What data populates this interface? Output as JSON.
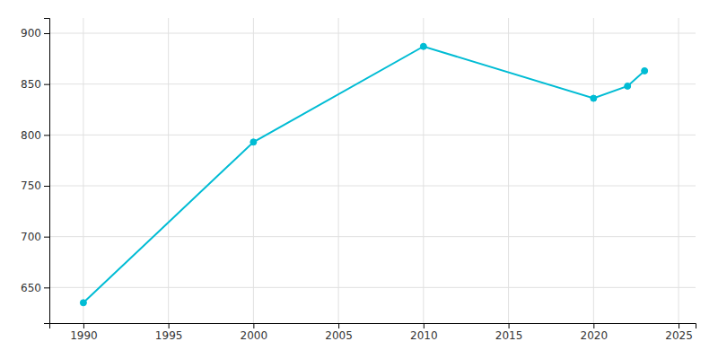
{
  "chart_data": {
    "type": "line",
    "x": [
      1990,
      2000,
      2010,
      2020,
      2022,
      2023
    ],
    "values": [
      635,
      793,
      887,
      836,
      848,
      863
    ],
    "color": "#00BCD4",
    "marker": "circle",
    "xlim": [
      1988,
      2026
    ],
    "ylim": [
      615,
      915
    ],
    "xticks": [
      1990,
      1995,
      2000,
      2005,
      2010,
      2015,
      2020,
      2025
    ],
    "yticks": [
      650,
      700,
      750,
      800,
      850,
      900
    ],
    "grid": true
  }
}
